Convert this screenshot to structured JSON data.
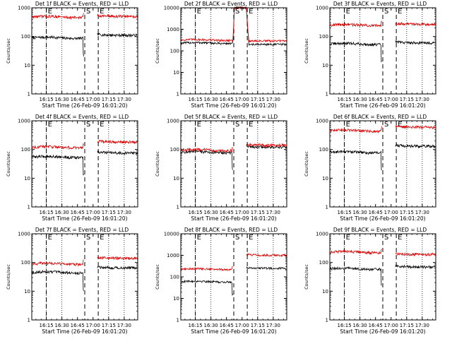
{
  "figure": {
    "title_suffix": "BLACK = Events, RED = LLD",
    "xlabel": "Start Time (26-Feb-09 16:01:20)",
    "ylabel": "Counts/sec",
    "x_ticks": [
      "16:15",
      "16:30",
      "16:45",
      "17:00",
      "17:15",
      "17:30"
    ],
    "marker_labels": [
      "E",
      "S",
      "E"
    ],
    "colors": {
      "events": "#000000",
      "lld": "#e00000",
      "axes": "#000000"
    }
  },
  "chart_data": [
    {
      "type": "line",
      "title": "Det 1f BLACK = Events, RED = LLD",
      "detector": "1f",
      "xlabel": "Start Time (26-Feb-09 16:01:20)",
      "ylabel": "Counts/sec",
      "ylog": true,
      "ylim": [
        1,
        1000
      ],
      "y_ticks": [
        "1000",
        "100",
        "10",
        "1"
      ],
      "xlim": [
        "16:01",
        "17:43"
      ],
      "markers": {
        "E1": "16:15",
        "S": "16:52",
        "E2": "17:05"
      },
      "series": [
        {
          "name": "Events",
          "color": "#000000",
          "pre_level": 90,
          "post_level": 110
        },
        {
          "name": "LLD",
          "color": "#e00000",
          "pre_level": 480,
          "post_level": 500
        }
      ]
    },
    {
      "type": "line",
      "title": "Det 2f BLACK = Events, RED = LLD",
      "detector": "2f",
      "xlabel": "Start Time (26-Feb-09 16:01:20)",
      "ylabel": "Counts/sec",
      "ylog": true,
      "ylim": [
        1,
        10000
      ],
      "y_ticks": [
        "10000",
        "1000",
        "100",
        "10",
        "1"
      ],
      "xlim": [
        "16:01",
        "17:43"
      ],
      "markers": {
        "E1": "16:15",
        "S": "16:52",
        "E2": "17:05"
      },
      "series": [
        {
          "name": "Events",
          "color": "#000000",
          "pre_level": 230,
          "post_level": 200,
          "gap_level": 10000
        },
        {
          "name": "LLD",
          "color": "#e00000",
          "pre_level": 320,
          "post_level": 290,
          "gap_level": 10000
        }
      ]
    },
    {
      "type": "line",
      "title": "Det 3f BLACK = Events, RED = LLD",
      "detector": "3f",
      "xlabel": "Start Time (26-Feb-09 16:01:20)",
      "ylabel": "Counts/sec",
      "ylog": true,
      "ylim": [
        1,
        1000
      ],
      "y_ticks": [
        "1000",
        "100",
        "10",
        "1"
      ],
      "xlim": [
        "16:01",
        "17:43"
      ],
      "markers": {
        "E1": "16:15",
        "S": "16:52",
        "E2": "17:05"
      },
      "series": [
        {
          "name": "Events",
          "color": "#000000",
          "pre_level": 55,
          "post_level": 60
        },
        {
          "name": "LLD",
          "color": "#e00000",
          "pre_level": 250,
          "post_level": 270
        }
      ]
    },
    {
      "type": "line",
      "title": "Det 4f BLACK = Events, RED = LLD",
      "detector": "4f",
      "xlabel": "Start Time (26-Feb-09 16:01:20)",
      "ylabel": "Counts/sec",
      "ylog": true,
      "ylim": [
        1,
        1000
      ],
      "y_ticks": [
        "1000",
        "100",
        "10",
        "1"
      ],
      "xlim": [
        "16:01",
        "17:43"
      ],
      "markers": {
        "E1": "16:15",
        "S": "16:52",
        "E2": "17:05"
      },
      "series": [
        {
          "name": "Events",
          "color": "#000000",
          "pre_level": 55,
          "post_level": 75
        },
        {
          "name": "LLD",
          "color": "#e00000",
          "pre_level": 120,
          "post_level": 180
        }
      ]
    },
    {
      "type": "line",
      "title": "Det 5f BLACK = Events, RED = LLD",
      "detector": "5f",
      "xlabel": "Start Time (26-Feb-09 16:01:20)",
      "ylabel": "Counts/sec",
      "ylog": true,
      "ylim": [
        1,
        1000
      ],
      "y_ticks": [
        "1000",
        "100",
        "10",
        "1"
      ],
      "xlim": [
        "16:01",
        "17:43"
      ],
      "markers": {
        "E1": "16:15",
        "S": "16:52",
        "E2": "17:05"
      },
      "series": [
        {
          "name": "Events",
          "color": "#000000",
          "pre_level": 80,
          "post_level": 120
        },
        {
          "name": "LLD",
          "color": "#e00000",
          "pre_level": 95,
          "post_level": 140
        }
      ]
    },
    {
      "type": "line",
      "title": "Det 6f BLACK = Events, RED = LLD",
      "detector": "6f",
      "xlabel": "Start Time (26-Feb-09 16:01:20)",
      "ylabel": "Counts/sec",
      "ylog": true,
      "ylim": [
        1,
        1000
      ],
      "y_ticks": [
        "1000",
        "100",
        "10",
        "1"
      ],
      "xlim": [
        "16:01",
        "17:43"
      ],
      "markers": {
        "E1": "16:15",
        "S": "16:52",
        "E2": "17:05"
      },
      "series": [
        {
          "name": "Events",
          "color": "#000000",
          "pre_level": 80,
          "post_level": 130
        },
        {
          "name": "LLD",
          "color": "#e00000",
          "pre_level": 450,
          "post_level": 600
        }
      ]
    },
    {
      "type": "line",
      "title": "Det 7f BLACK = Events, RED = LLD",
      "detector": "7f",
      "xlabel": "Start Time (26-Feb-09 16:01:20)",
      "ylabel": "Counts/sec",
      "ylog": true,
      "ylim": [
        1,
        1000
      ],
      "y_ticks": [
        "1000",
        "100",
        "10",
        "1"
      ],
      "xlim": [
        "16:01",
        "17:43"
      ],
      "markers": {
        "E1": "16:15",
        "S": "16:52",
        "E2": "17:05"
      },
      "series": [
        {
          "name": "Events",
          "color": "#000000",
          "pre_level": 45,
          "post_level": 65
        },
        {
          "name": "LLD",
          "color": "#e00000",
          "pre_level": 90,
          "post_level": 140
        }
      ]
    },
    {
      "type": "line",
      "title": "Det 8f BLACK = Events, RED = LLD",
      "detector": "8f",
      "xlabel": "Start Time (26-Feb-09 16:01:20)",
      "ylabel": "Counts/sec",
      "ylog": true,
      "ylim": [
        1,
        10000
      ],
      "y_ticks": [
        "10000",
        "1000",
        "100",
        "10",
        "1"
      ],
      "xlim": [
        "16:01",
        "17:43"
      ],
      "markers": {
        "E1": "16:15",
        "S": "16:52",
        "E2": "17:05"
      },
      "series": [
        {
          "name": "Events",
          "color": "#000000",
          "pre_level": 60,
          "post_level": 250
        },
        {
          "name": "LLD",
          "color": "#e00000",
          "pre_level": 230,
          "post_level": 1000
        }
      ]
    },
    {
      "type": "line",
      "title": "Det 9f BLACK = Events, RED = LLD",
      "detector": "9f",
      "xlabel": "Start Time (26-Feb-09 16:01:20)",
      "ylabel": "Counts/sec",
      "ylog": true,
      "ylim": [
        1,
        1000
      ],
      "y_ticks": [
        "1000",
        "100",
        "10",
        "1"
      ],
      "xlim": [
        "16:01",
        "17:43"
      ],
      "markers": {
        "E1": "16:15",
        "S": "16:52",
        "E2": "17:05"
      },
      "series": [
        {
          "name": "Events",
          "color": "#000000",
          "pre_level": 60,
          "post_level": 70
        },
        {
          "name": "LLD",
          "color": "#e00000",
          "pre_level": 230,
          "post_level": 190
        }
      ]
    }
  ]
}
